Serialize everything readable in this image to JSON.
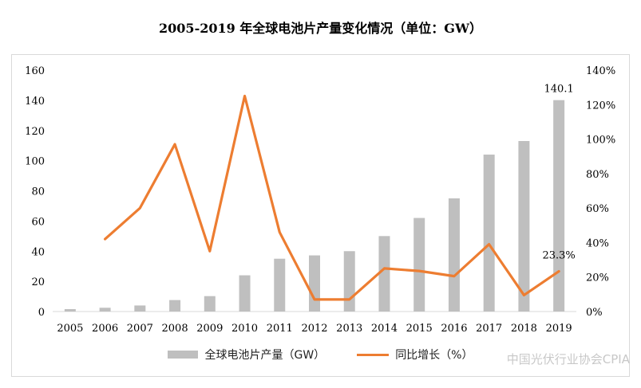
{
  "title": "2005-2019 年全球电池片产量变化情况（单位：GW）",
  "watermark": "中国光伏行业协会CPIA",
  "chart_data": {
    "type": "bar",
    "title": "2005-2019 年全球电池片产量变化情况（单位：GW）",
    "categories": [
      "2005",
      "2006",
      "2007",
      "2008",
      "2009",
      "2010",
      "2011",
      "2012",
      "2013",
      "2014",
      "2015",
      "2016",
      "2017",
      "2018",
      "2019"
    ],
    "series": [
      {
        "name": "全球电池片产量（GW）",
        "type": "bar",
        "axis": "left",
        "color": "#bfbfbf",
        "values": [
          1.6,
          2.5,
          4,
          7.6,
          10.2,
          24,
          35,
          37.2,
          40,
          50,
          62,
          75,
          104,
          113,
          140.1
        ]
      },
      {
        "name": "同比增长（%）",
        "type": "line",
        "axis": "right",
        "color": "#ed7d31",
        "values": [
          null,
          42,
          60,
          97,
          35,
          125,
          46,
          7,
          7,
          25,
          23.5,
          20.5,
          39,
          9.5,
          23.3
        ]
      }
    ],
    "yleft": {
      "ylim": [
        0,
        160
      ],
      "ticks": [
        0,
        20,
        40,
        60,
        80,
        100,
        120,
        140,
        160
      ]
    },
    "yright": {
      "ylim": [
        0,
        140
      ],
      "ticks": [
        "0%",
        "20%",
        "40%",
        "60%",
        "80%",
        "100%",
        "120%",
        "140%"
      ]
    },
    "annotations": {
      "bar_last": "140.1",
      "line_last": "23.3%"
    },
    "legend_position": "bottom",
    "grid": false
  },
  "legend": {
    "bar_label": "全球电池片产量（GW）",
    "line_label": "同比增长（%）"
  }
}
